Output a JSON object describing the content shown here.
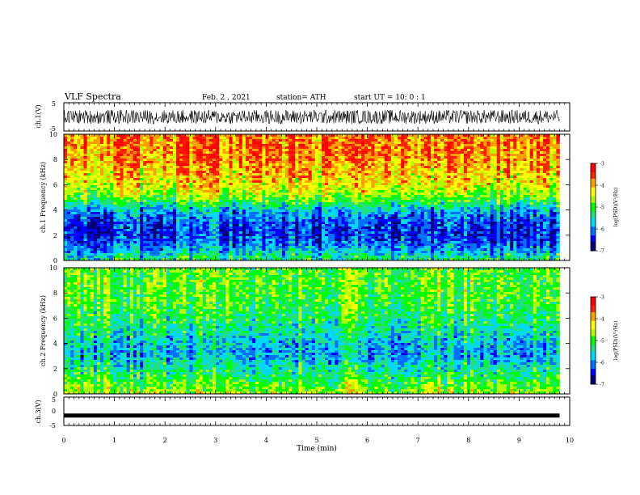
{
  "header": {
    "title": "VLF Spectra",
    "date": "Feb. 2 , 2021",
    "station": "station= ATH",
    "start": "start  UT =   10: 0  : 1"
  },
  "colors": {
    "scale": [
      "#00007a",
      "#0000ff",
      "#0070ff",
      "#00d8ff",
      "#20e080",
      "#00ff00",
      "#b0ff00",
      "#ffff00",
      "#ffa000",
      "#ff2000",
      "#ff0000",
      "#ffd8d8"
    ],
    "trace": "#000000"
  },
  "chart_data": [
    {
      "type": "line",
      "panel": "ch1-waveform",
      "ylabel": "ch.1(V)",
      "ylim": [
        -5,
        5
      ],
      "ytick_labels": [
        "5",
        "-5"
      ],
      "x_range_min": [
        0,
        9.8
      ],
      "description_values": {
        "min": -2.5,
        "max": 2.5
      }
    },
    {
      "type": "heatmap",
      "panel": "ch1-spectrogram",
      "ylabel": "ch.1 Frequency (kHz)",
      "ylim": [
        0,
        10
      ],
      "ytick_labels": [
        "0",
        "2",
        "4",
        "6",
        "8",
        "10"
      ],
      "x_range_min": [
        0,
        9.8
      ],
      "colorbar": {
        "label": "log(PSD)(V²/Hz)",
        "range": [
          -7,
          -3
        ],
        "tick_labels": [
          "-3",
          "-4",
          "-5",
          "-6",
          "-7"
        ]
      },
      "profile_khz": [
        0,
        1,
        2,
        3,
        4,
        5,
        6,
        7,
        8,
        9,
        10
      ],
      "profile_level": [
        -5.2,
        -6.0,
        -6.4,
        -6.3,
        -5.8,
        -4.8,
        -4.3,
        -4.1,
        -3.9,
        -3.8,
        -3.8
      ]
    },
    {
      "type": "heatmap",
      "panel": "ch2-spectrogram",
      "ylabel": "ch.2 Frequency (kHz)",
      "ylim": [
        0,
        10
      ],
      "ytick_labels": [
        "0",
        "2",
        "4",
        "6",
        "8",
        "10"
      ],
      "x_range_min": [
        0,
        9.8
      ],
      "colorbar": {
        "label": "log(PSD)(V²/Hz)",
        "range": [
          -7,
          -3
        ],
        "tick_labels": [
          "-3",
          "-4",
          "-5",
          "-6",
          "-7"
        ]
      },
      "profile_khz": [
        0,
        1,
        2,
        3,
        4,
        5,
        6,
        7,
        8,
        9,
        10
      ],
      "profile_level": [
        -4.6,
        -5.0,
        -5.4,
        -5.8,
        -5.7,
        -5.4,
        -5.2,
        -5.0,
        -4.9,
        -4.9,
        -4.9
      ]
    },
    {
      "type": "line",
      "panel": "ch3-waveform",
      "ylabel": "ch.3(V)",
      "ylim": [
        -5,
        5
      ],
      "ytick_labels": [
        "5",
        "0",
        "-5"
      ],
      "x_range_min": [
        0,
        9.8
      ],
      "constant_value": -1.5
    }
  ],
  "xaxis": {
    "label": "Time  (min)",
    "ticks": [
      "0",
      "1",
      "2",
      "3",
      "4",
      "5",
      "6",
      "7",
      "8",
      "9",
      "10"
    ],
    "range": [
      0,
      10
    ]
  }
}
